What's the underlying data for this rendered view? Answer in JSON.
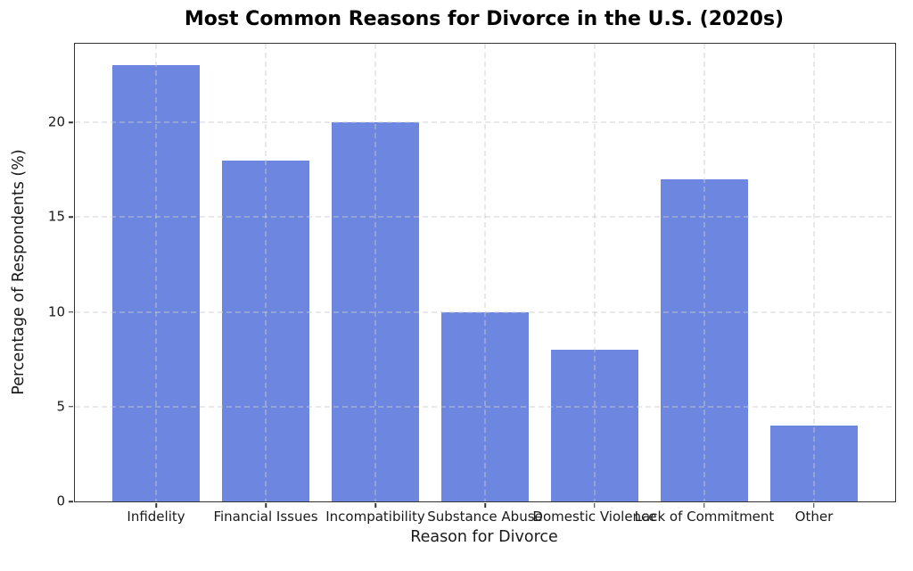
{
  "chart_data": {
    "type": "bar",
    "title": "Most Common Reasons for Divorce in the U.S. (2020s)",
    "xlabel": "Reason for Divorce",
    "ylabel": "Percentage of Respondents (%)",
    "categories": [
      "Infidelity",
      "Financial Issues",
      "Incompatibility",
      "Substance Abuse",
      "Domestic Violence",
      "Lack of Commitment",
      "Other"
    ],
    "values": [
      23,
      18,
      20,
      10,
      8,
      17,
      4
    ],
    "yticks": [
      0,
      5,
      10,
      15,
      20
    ],
    "ylim": [
      0,
      24.15
    ],
    "xlim": [
      -0.74,
      6.74
    ],
    "bar_width": 0.8,
    "bar_color": "#6d87e0",
    "grid": true,
    "grid_style": "dashed",
    "legend": "none"
  }
}
